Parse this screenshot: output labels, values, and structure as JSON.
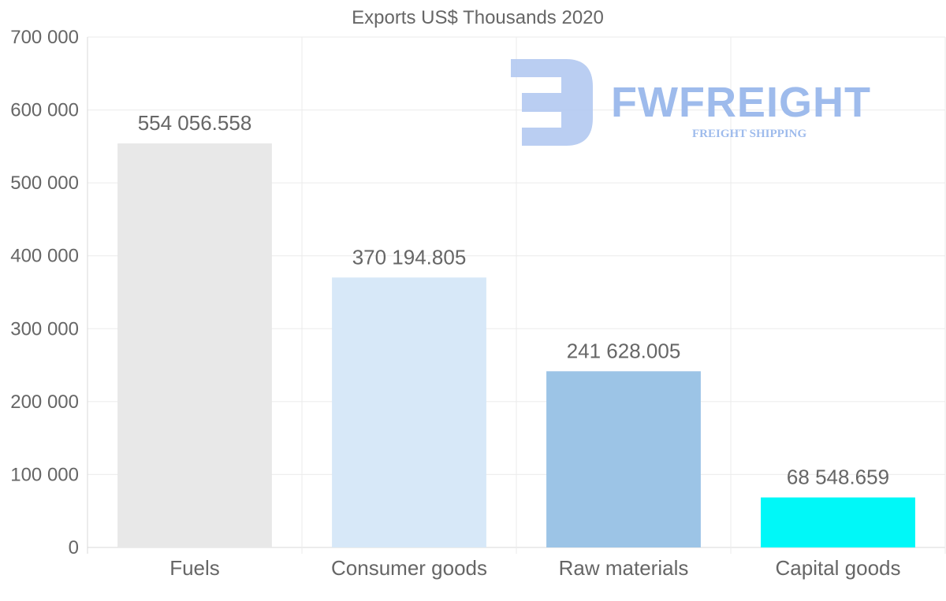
{
  "chart_data": {
    "type": "bar",
    "title": "Exports US$ Thousands 2020",
    "categories": [
      "Fuels",
      "Consumer goods",
      "Raw materials",
      "Capital goods"
    ],
    "values": [
      554056.558,
      370194.805,
      241628.005,
      68548.659
    ],
    "value_labels": [
      "554 056.558",
      "370 194.805",
      "241 628.005",
      "68 548.659"
    ],
    "colors": [
      "#e8e8e8",
      "#d7e8f8",
      "#9cc4e6",
      "#00f8f8"
    ],
    "y_ticks": [
      0,
      100000,
      200000,
      300000,
      400000,
      500000,
      600000,
      700000
    ],
    "y_tick_labels": [
      "0",
      "100 000",
      "200 000",
      "300 000",
      "400 000",
      "500 000",
      "600 000",
      "700 000"
    ],
    "ylim": [
      0,
      700000
    ],
    "xlabel": "",
    "ylabel": "",
    "grid": true
  },
  "watermark": {
    "brand": "FWFREIGHT",
    "tagline": "FREIGHT SHIPPING"
  }
}
